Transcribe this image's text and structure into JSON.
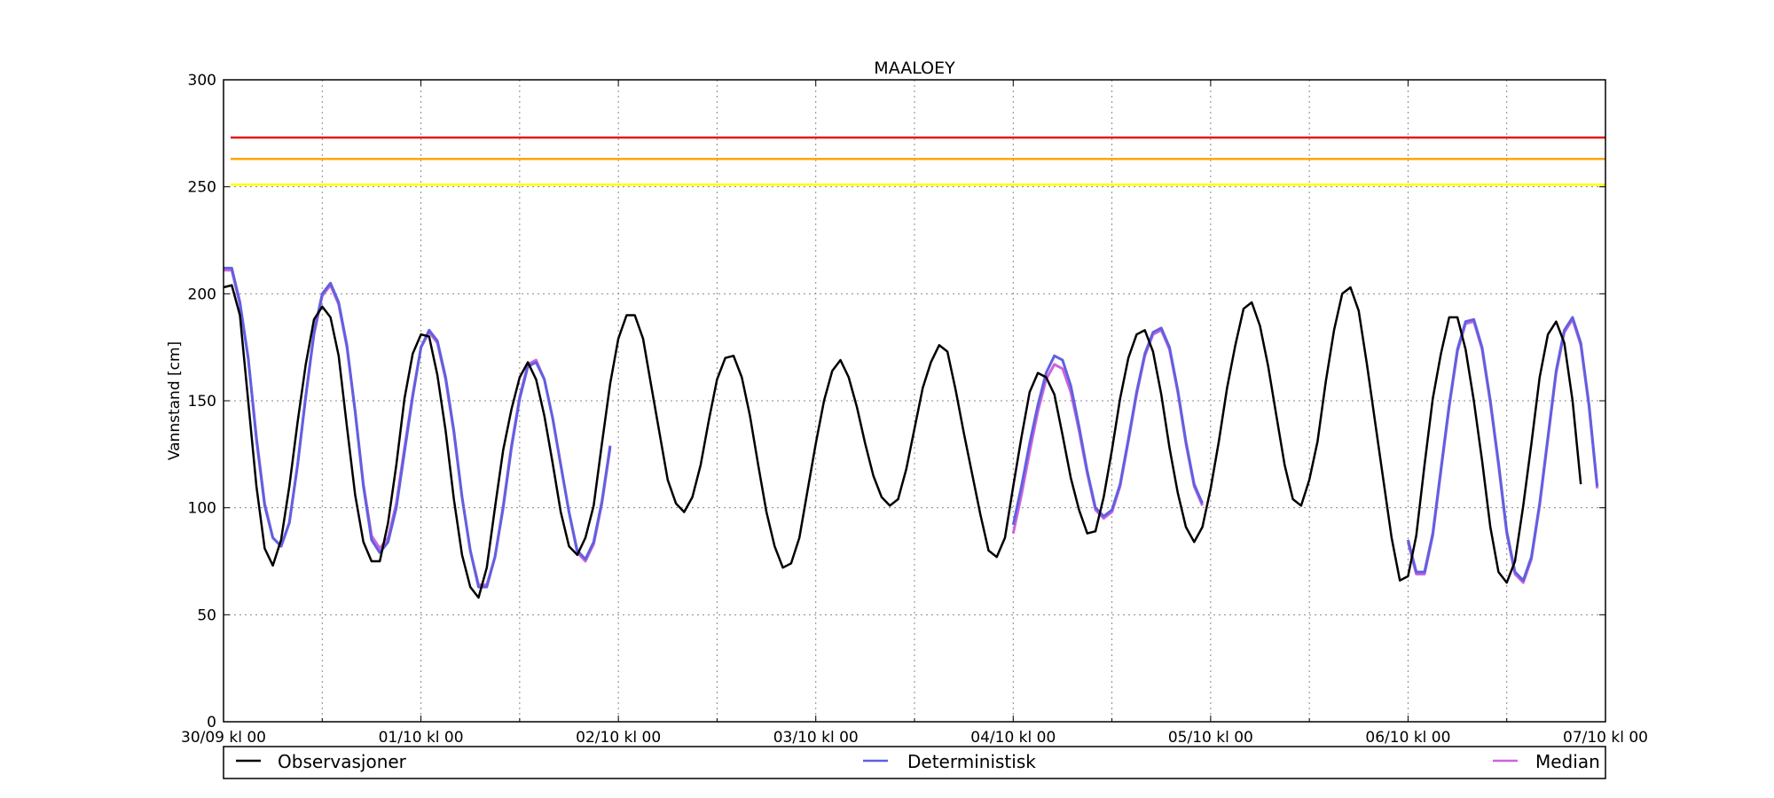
{
  "chart_data": {
    "type": "line",
    "title": "MAALOEY",
    "xlabel": "",
    "ylabel": "Vannstand [cm]",
    "ylim": [
      0,
      300
    ],
    "xlim": [
      "30/09 00:00",
      "07/10 00:00"
    ],
    "x_ticks": [
      "30/09 kl 00",
      "01/10 kl 00",
      "02/10 kl 00",
      "03/10 kl 00",
      "04/10 kl 00",
      "05/10 kl 00",
      "06/10 kl 00",
      "07/10 kl 00"
    ],
    "x_minor_ticks": [
      "30/09 12:00",
      "01/10 12:00",
      "02/10 12:00",
      "03/10 12:00",
      "04/10 12:00",
      "05/10 12:00",
      "06/10 12:00"
    ],
    "y_ticks": [
      0,
      50,
      100,
      150,
      200,
      250,
      300
    ],
    "grid": true,
    "legend_position": "bottom",
    "thresholds": [
      {
        "value": 273,
        "color": "#e31a1c"
      },
      {
        "value": 263,
        "color": "#ffa500"
      },
      {
        "value": 251,
        "color": "#ffff00"
      }
    ],
    "series": [
      {
        "name": "Observasjoner",
        "color": "#000000",
        "start": "30/09 00:00",
        "step_hours": 1,
        "values": [
          203,
          204,
          190,
          150,
          110,
          81,
          73,
          85,
          110,
          140,
          167,
          188,
          194,
          189,
          171,
          138,
          106,
          84,
          75,
          75,
          93,
          120,
          151,
          172,
          181,
          180,
          162,
          136,
          104,
          78,
          63,
          58,
          72,
          100,
          127,
          146,
          161,
          168,
          160,
          143,
          121,
          98,
          82,
          78,
          86,
          101,
          130,
          158,
          179,
          190,
          190,
          179,
          157,
          135,
          113,
          102,
          98,
          105,
          120,
          141,
          160,
          170,
          171,
          161,
          143,
          120,
          98,
          82,
          72,
          74,
          86,
          108,
          130,
          150,
          164,
          169,
          161,
          147,
          130,
          115,
          105,
          101,
          104,
          118,
          137,
          156,
          168,
          176,
          173,
          155,
          135,
          116,
          97,
          80,
          77,
          86,
          110,
          133,
          154,
          163,
          161,
          153,
          134,
          114,
          99,
          88,
          89,
          105,
          127,
          151,
          170,
          181,
          183,
          173,
          153,
          128,
          107,
          91,
          84,
          91,
          109,
          131,
          156,
          176,
          193,
          196,
          185,
          166,
          143,
          120,
          104,
          101,
          113,
          131,
          159,
          183,
          200,
          203,
          192,
          167,
          140,
          113,
          86,
          66,
          68,
          87,
          120,
          151,
          172,
          189,
          189,
          174,
          150,
          122,
          91,
          70,
          65,
          75,
          101,
          130,
          161,
          181,
          187,
          177,
          150,
          111
        ]
      },
      {
        "name": "Deterministisk",
        "color": "#6060e0",
        "segments": [
          {
            "start": "30/09 00:00",
            "step_hours": 1,
            "values": [
              212,
              212,
              196,
              170,
              132,
              101,
              86,
              82,
              93,
              120,
              152,
              182,
              200,
              205,
              196,
              176,
              145,
              110,
              85,
              79,
              84,
              100,
              126,
              152,
              175,
              183,
              178,
              161,
              136,
              105,
              80,
              63,
              63,
              77,
              100,
              128,
              151,
              166,
              168,
              160,
              142,
              120,
              98,
              80,
              76,
              84,
              103,
              129
            ]
          },
          {
            "start": "04/10 00:00",
            "step_hours": 1,
            "values": [
              92,
              110,
              130,
              148,
              163,
              171,
              169,
              157,
              138,
              117,
              100,
              96,
              99,
              111,
              132,
              154,
              172,
              182,
              184,
              175,
              155,
              131,
              111,
              102
            ]
          },
          {
            "start": "06/10 00:00",
            "step_hours": 1,
            "values": [
              85,
              70,
              70,
              88,
              118,
              148,
              174,
              187,
              188,
              175,
              150,
              121,
              89,
              70,
              66,
              77,
              102,
              133,
              164,
              183,
              189,
              177,
              148,
              110
            ]
          }
        ]
      },
      {
        "name": "Median",
        "color": "#cc66dd",
        "segments": [
          {
            "start": "30/09 00:00",
            "step_hours": 1,
            "values": [
              211,
              211,
              195,
              170,
              133,
              102,
              86,
              82,
              93,
              120,
              152,
              181,
              199,
              204,
              195,
              175,
              145,
              111,
              87,
              81,
              86,
              102,
              128,
              153,
              175,
              182,
              177,
              160,
              135,
              105,
              80,
              64,
              64,
              77,
              101,
              129,
              152,
              167,
              169,
              160,
              142,
              120,
              98,
              79,
              75,
              83,
              102,
              128
            ]
          },
          {
            "start": "04/10 00:00",
            "step_hours": 1,
            "values": [
              88,
              106,
              126,
              145,
              160,
              167,
              165,
              154,
              136,
              116,
              99,
              95,
              98,
              110,
              131,
              153,
              171,
              181,
              183,
              174,
              154,
              130,
              110,
              101
            ]
          },
          {
            "start": "06/10 00:00",
            "step_hours": 1,
            "values": [
              84,
              69,
              69,
              87,
              117,
              147,
              173,
              186,
              187,
              174,
              149,
              120,
              88,
              69,
              65,
              76,
              101,
              132,
              163,
              182,
              188,
              176,
              147,
              109
            ]
          }
        ]
      }
    ]
  }
}
